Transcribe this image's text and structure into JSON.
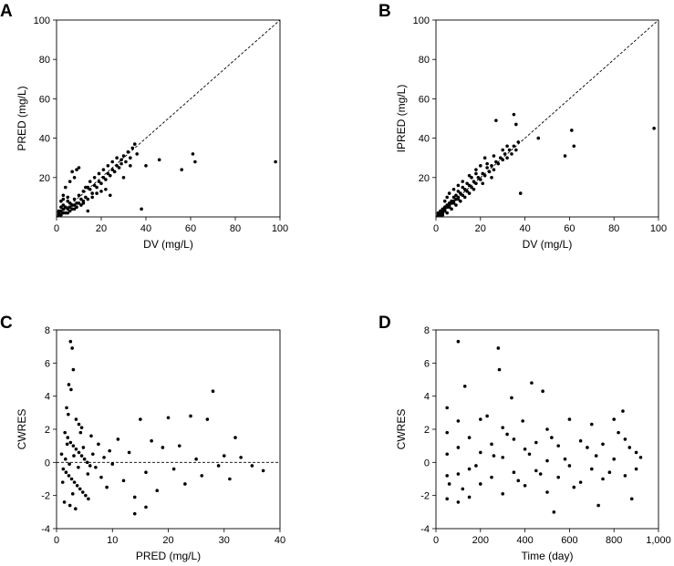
{
  "chart_data": [
    {
      "panel": "A",
      "type": "scatter",
      "xlabel": "DV (mg/L)",
      "ylabel": "PRED (mg/L)",
      "xlim": [
        0,
        100
      ],
      "ylim": [
        0,
        100
      ],
      "xticks": [
        "0",
        "20",
        "40",
        "60",
        "80",
        "100"
      ],
      "yticks": [
        "20",
        "40",
        "60",
        "80",
        "100"
      ],
      "reference_line": "identity (y = x), dashed",
      "points": [
        [
          2,
          3
        ],
        [
          3,
          4
        ],
        [
          1,
          2
        ],
        [
          4,
          5
        ],
        [
          5,
          4
        ],
        [
          6,
          7
        ],
        [
          3,
          6
        ],
        [
          2,
          5
        ],
        [
          7,
          6
        ],
        [
          8,
          9
        ],
        [
          4,
          2
        ],
        [
          5,
          8
        ],
        [
          9,
          7
        ],
        [
          10,
          11
        ],
        [
          6,
          3
        ],
        [
          11,
          9
        ],
        [
          12,
          13
        ],
        [
          13,
          10
        ],
        [
          14,
          15
        ],
        [
          8,
          4
        ],
        [
          15,
          18
        ],
        [
          16,
          12
        ],
        [
          17,
          20
        ],
        [
          18,
          15
        ],
        [
          19,
          22
        ],
        [
          20,
          17
        ],
        [
          21,
          24
        ],
        [
          22,
          19
        ],
        [
          23,
          26
        ],
        [
          24,
          21
        ],
        [
          25,
          28
        ],
        [
          26,
          23
        ],
        [
          27,
          30
        ],
        [
          28,
          25
        ],
        [
          29,
          27
        ],
        [
          30,
          31
        ],
        [
          31,
          28
        ],
        [
          32,
          33
        ],
        [
          33,
          30
        ],
        [
          34,
          35
        ],
        [
          35,
          37
        ],
        [
          36,
          32
        ],
        [
          5,
          10
        ],
        [
          6,
          18
        ],
        [
          7,
          23
        ],
        [
          4,
          15
        ],
        [
          8,
          20
        ],
        [
          9,
          24
        ],
        [
          10,
          25
        ],
        [
          3,
          9
        ],
        [
          12,
          7
        ],
        [
          14,
          9
        ],
        [
          16,
          10
        ],
        [
          18,
          12
        ],
        [
          20,
          13
        ],
        [
          22,
          14
        ],
        [
          38,
          4
        ],
        [
          40,
          26
        ],
        [
          46,
          29
        ],
        [
          56,
          24
        ],
        [
          61,
          32
        ],
        [
          62,
          28
        ],
        [
          98,
          28
        ],
        [
          1,
          1
        ],
        [
          2,
          1
        ],
        [
          1,
          3
        ],
        [
          3,
          2
        ],
        [
          5,
          2
        ],
        [
          6,
          5
        ],
        [
          7,
          4
        ],
        [
          8,
          6
        ],
        [
          9,
          5
        ],
        [
          10,
          7
        ],
        [
          11,
          6
        ],
        [
          12,
          8
        ],
        [
          13,
          15
        ],
        [
          15,
          14
        ],
        [
          17,
          16
        ],
        [
          19,
          18
        ],
        [
          21,
          20
        ],
        [
          23,
          22
        ],
        [
          25,
          24
        ],
        [
          27,
          26
        ],
        [
          29,
          29
        ],
        [
          14,
          3
        ],
        [
          24,
          11
        ],
        [
          30,
          20
        ],
        [
          33,
          26
        ],
        [
          3,
          11
        ],
        [
          2,
          8
        ]
      ]
    },
    {
      "panel": "B",
      "type": "scatter",
      "xlabel": "DV (mg/L)",
      "ylabel": "IPRED (mg/L)",
      "xlim": [
        0,
        100
      ],
      "ylim": [
        0,
        100
      ],
      "xticks": [
        "0",
        "20",
        "40",
        "60",
        "80",
        "100"
      ],
      "yticks": [
        "20",
        "40",
        "60",
        "80",
        "100"
      ],
      "reference_line": "identity (y = x), dashed",
      "points": [
        [
          1,
          1
        ],
        [
          2,
          2
        ],
        [
          3,
          3
        ],
        [
          4,
          4
        ],
        [
          5,
          5
        ],
        [
          6,
          6
        ],
        [
          7,
          7
        ],
        [
          8,
          8
        ],
        [
          9,
          9
        ],
        [
          10,
          10
        ],
        [
          2,
          3
        ],
        [
          3,
          4
        ],
        [
          4,
          3
        ],
        [
          5,
          6
        ],
        [
          6,
          5
        ],
        [
          7,
          8
        ],
        [
          8,
          7
        ],
        [
          9,
          11
        ],
        [
          10,
          9
        ],
        [
          11,
          12
        ],
        [
          12,
          11
        ],
        [
          13,
          14
        ],
        [
          14,
          13
        ],
        [
          15,
          16
        ],
        [
          16,
          15
        ],
        [
          17,
          18
        ],
        [
          18,
          17
        ],
        [
          19,
          20
        ],
        [
          20,
          19
        ],
        [
          21,
          22
        ],
        [
          22,
          21
        ],
        [
          23,
          25
        ],
        [
          24,
          23
        ],
        [
          25,
          26
        ],
        [
          26,
          24
        ],
        [
          27,
          28
        ],
        [
          28,
          27
        ],
        [
          29,
          30
        ],
        [
          30,
          29
        ],
        [
          31,
          32
        ],
        [
          32,
          30
        ],
        [
          33,
          34
        ],
        [
          34,
          32
        ],
        [
          35,
          36
        ],
        [
          36,
          34
        ],
        [
          37,
          38
        ],
        [
          4,
          8
        ],
        [
          5,
          10
        ],
        [
          6,
          12
        ],
        [
          8,
          14
        ],
        [
          10,
          16
        ],
        [
          12,
          18
        ],
        [
          15,
          21
        ],
        [
          18,
          24
        ],
        [
          20,
          26
        ],
        [
          22,
          30
        ],
        [
          3,
          1
        ],
        [
          5,
          2
        ],
        [
          7,
          4
        ],
        [
          9,
          6
        ],
        [
          11,
          8
        ],
        [
          13,
          10
        ],
        [
          15,
          12
        ],
        [
          17,
          14
        ],
        [
          21,
          17
        ],
        [
          25,
          20
        ],
        [
          27,
          49
        ],
        [
          35,
          52
        ],
        [
          36,
          47
        ],
        [
          38,
          12
        ],
        [
          46,
          40
        ],
        [
          58,
          31
        ],
        [
          61,
          44
        ],
        [
          62,
          36
        ],
        [
          98,
          45
        ],
        [
          2,
          1
        ],
        [
          1,
          2
        ],
        [
          3,
          2
        ],
        [
          4,
          5
        ],
        [
          6,
          7
        ],
        [
          8,
          10
        ],
        [
          10,
          13
        ],
        [
          12,
          15
        ],
        [
          14,
          17
        ],
        [
          16,
          20
        ],
        [
          18,
          22
        ],
        [
          23,
          27
        ],
        [
          26,
          31
        ],
        [
          30,
          34
        ],
        [
          32,
          36
        ]
      ]
    },
    {
      "panel": "C",
      "type": "scatter",
      "xlabel": "PRED (mg/L)",
      "ylabel": "CWRES",
      "xlim": [
        0,
        40
      ],
      "ylim": [
        -4,
        8
      ],
      "xticks": [
        "0",
        "10",
        "20",
        "30",
        "40"
      ],
      "yticks": [
        "-4",
        "-2",
        "0",
        "2",
        "4",
        "6",
        "8"
      ],
      "reference_line": "y = 0, dashed",
      "points": [
        [
          2.5,
          7.3
        ],
        [
          2.8,
          6.9
        ],
        [
          3,
          5.6
        ],
        [
          2.2,
          4.7
        ],
        [
          2.6,
          4.4
        ],
        [
          1.8,
          3.3
        ],
        [
          2.1,
          2.9
        ],
        [
          3.5,
          2.6
        ],
        [
          4,
          2.3
        ],
        [
          4.5,
          2.1
        ],
        [
          1.5,
          1.8
        ],
        [
          2,
          1.5
        ],
        [
          2.5,
          1.2
        ],
        [
          3,
          1.0
        ],
        [
          3.5,
          0.8
        ],
        [
          4,
          0.6
        ],
        [
          4.5,
          0.4
        ],
        [
          5,
          0.2
        ],
        [
          5.5,
          0.0
        ],
        [
          6,
          -0.2
        ],
        [
          1.2,
          -0.4
        ],
        [
          1.7,
          -0.6
        ],
        [
          2.2,
          -0.8
        ],
        [
          2.7,
          -1.0
        ],
        [
          3.2,
          -1.2
        ],
        [
          3.7,
          -1.4
        ],
        [
          4.2,
          -1.6
        ],
        [
          4.7,
          -1.8
        ],
        [
          5.2,
          -2.0
        ],
        [
          5.7,
          -2.2
        ],
        [
          1.4,
          -2.4
        ],
        [
          2.4,
          -2.6
        ],
        [
          3.4,
          -2.8
        ],
        [
          6.5,
          0.5
        ],
        [
          7,
          -0.3
        ],
        [
          7.5,
          1.1
        ],
        [
          8,
          -0.9
        ],
        [
          8.5,
          0.3
        ],
        [
          9,
          -1.5
        ],
        [
          9.5,
          0.7
        ],
        [
          10,
          -0.1
        ],
        [
          11,
          1.4
        ],
        [
          12,
          -1.1
        ],
        [
          13,
          0.6
        ],
        [
          14,
          -2.1
        ],
        [
          15,
          2.6
        ],
        [
          16,
          -0.6
        ],
        [
          17,
          1.3
        ],
        [
          18,
          -1.7
        ],
        [
          19,
          0.9
        ],
        [
          20,
          2.7
        ],
        [
          21,
          -0.4
        ],
        [
          22,
          1.0
        ],
        [
          23,
          -1.3
        ],
        [
          24,
          2.8
        ],
        [
          25,
          0.2
        ],
        [
          26,
          -0.8
        ],
        [
          27,
          2.6
        ],
        [
          28,
          4.3
        ],
        [
          29,
          -0.2
        ],
        [
          30,
          0.4
        ],
        [
          31,
          -1.0
        ],
        [
          32,
          1.5
        ],
        [
          33,
          0.3
        ],
        [
          35,
          -0.2
        ],
        [
          37,
          -0.5
        ],
        [
          14,
          -3.1
        ],
        [
          16,
          -2.7
        ],
        [
          1.6,
          0.2
        ],
        [
          2.3,
          -0.1
        ],
        [
          3.1,
          0.4
        ],
        [
          3.9,
          -0.3
        ],
        [
          4.8,
          0.9
        ],
        [
          5.6,
          -0.7
        ],
        [
          6.2,
          1.6
        ],
        [
          0.9,
          0.5
        ],
        [
          1.1,
          -1.2
        ],
        [
          1.9,
          1.1
        ],
        [
          2.9,
          -1.9
        ],
        [
          4.3,
          1.8
        ]
      ]
    },
    {
      "panel": "D",
      "type": "scatter",
      "xlabel": "Time (day)",
      "ylabel": "CWRES",
      "xlim": [
        0,
        1000
      ],
      "ylim": [
        -4,
        8
      ],
      "xticks": [
        "0",
        "200",
        "400",
        "600",
        "800",
        "1,000"
      ],
      "yticks": [
        "-4",
        "-2",
        "0",
        "2",
        "4",
        "6",
        "8"
      ],
      "reference_line": "none",
      "points": [
        [
          50,
          3.3
        ],
        [
          50,
          1.8
        ],
        [
          50,
          0.5
        ],
        [
          50,
          -0.8
        ],
        [
          50,
          -2.2
        ],
        [
          100,
          7.3
        ],
        [
          100,
          2.5
        ],
        [
          100,
          0.9
        ],
        [
          100,
          -0.7
        ],
        [
          100,
          -2.4
        ],
        [
          130,
          4.6
        ],
        [
          150,
          1.5
        ],
        [
          150,
          -0.4
        ],
        [
          150,
          -2.1
        ],
        [
          200,
          2.6
        ],
        [
          200,
          0.6
        ],
        [
          200,
          -1.3
        ],
        [
          230,
          2.8
        ],
        [
          250,
          1.1
        ],
        [
          250,
          -0.9
        ],
        [
          280,
          6.9
        ],
        [
          285,
          5.6
        ],
        [
          300,
          2.1
        ],
        [
          300,
          0.3
        ],
        [
          300,
          -1.9
        ],
        [
          340,
          3.9
        ],
        [
          350,
          1.4
        ],
        [
          350,
          -0.6
        ],
        [
          390,
          2.5
        ],
        [
          400,
          0.8
        ],
        [
          400,
          -1.4
        ],
        [
          430,
          4.8
        ],
        [
          450,
          1.2
        ],
        [
          450,
          -0.5
        ],
        [
          480,
          4.3
        ],
        [
          500,
          2.0
        ],
        [
          500,
          0.1
        ],
        [
          500,
          -1.8
        ],
        [
          530,
          -3.0
        ],
        [
          550,
          1.0
        ],
        [
          550,
          -0.9
        ],
        [
          600,
          2.6
        ],
        [
          600,
          -0.2
        ],
        [
          650,
          1.3
        ],
        [
          650,
          -1.2
        ],
        [
          700,
          2.3
        ],
        [
          700,
          -0.4
        ],
        [
          730,
          -2.6
        ],
        [
          750,
          1.1
        ],
        [
          750,
          -1.0
        ],
        [
          800,
          2.6
        ],
        [
          800,
          0.2
        ],
        [
          840,
          3.1
        ],
        [
          850,
          -0.8
        ],
        [
          850,
          1.4
        ],
        [
          880,
          -2.2
        ],
        [
          900,
          0.6
        ],
        [
          900,
          -0.4
        ],
        [
          920,
          0.3
        ],
        [
          60,
          -1.3
        ],
        [
          120,
          -1.6
        ],
        [
          180,
          -0.2
        ],
        [
          260,
          0.4
        ],
        [
          320,
          1.7
        ],
        [
          370,
          -1.1
        ],
        [
          420,
          0.5
        ],
        [
          470,
          -0.7
        ],
        [
          520,
          1.5
        ],
        [
          580,
          0.2
        ],
        [
          620,
          -1.5
        ],
        [
          680,
          0.9
        ],
        [
          720,
          0.4
        ],
        [
          780,
          -0.6
        ],
        [
          820,
          1.8
        ],
        [
          870,
          0.9
        ]
      ]
    }
  ]
}
